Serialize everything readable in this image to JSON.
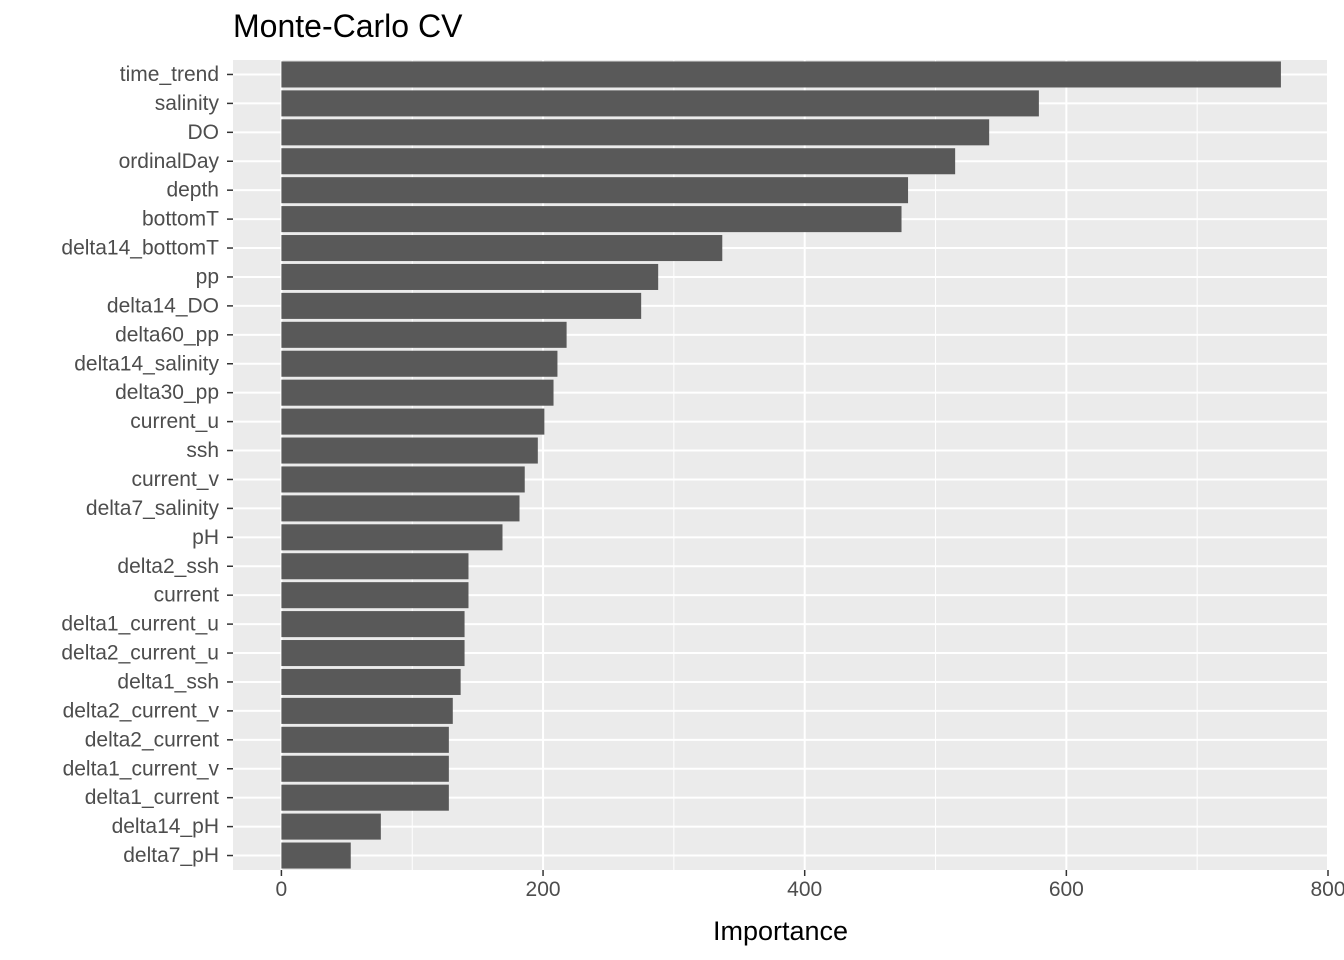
{
  "chart_data": {
    "type": "bar",
    "orientation": "horizontal",
    "title": "Monte-Carlo CV",
    "xlabel": "Importance",
    "ylabel": "",
    "xlim": [
      -37,
      800
    ],
    "xticks": [
      0,
      200,
      400,
      600,
      800
    ],
    "grid": true,
    "categories": [
      "time_trend",
      "salinity",
      "DO",
      "ordinalDay",
      "depth",
      "bottomT",
      "delta14_bottomT",
      "pp",
      "delta14_DO",
      "delta60_pp",
      "delta14_salinity",
      "delta30_pp",
      "current_u",
      "ssh",
      "current_v",
      "delta7_salinity",
      "pH",
      "delta2_ssh",
      "current",
      "delta1_current_u",
      "delta2_current_u",
      "delta1_ssh",
      "delta2_current_v",
      "delta2_current",
      "delta1_current_v",
      "delta1_current",
      "delta14_pH",
      "delta7_pH"
    ],
    "values": [
      764,
      579,
      541,
      515,
      479,
      474,
      337,
      288,
      275,
      218,
      211,
      208,
      201,
      196,
      186,
      182,
      169,
      143,
      143,
      140,
      140,
      137,
      131,
      128,
      128,
      128,
      76,
      53
    ],
    "colors": {
      "bar": "#595959",
      "panel": "#ebebeb",
      "grid": "#ffffff",
      "tick": "#4d4d4d"
    }
  }
}
